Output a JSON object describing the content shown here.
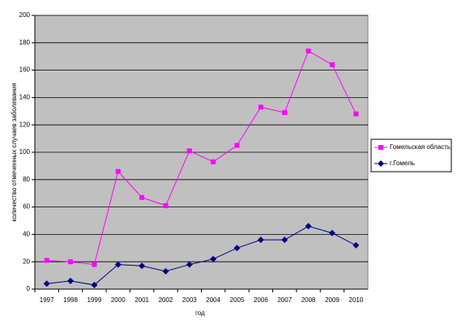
{
  "chart_data": {
    "type": "line",
    "x_label": "год",
    "y_label": "количество отмеченных случаев заболевания",
    "categories": [
      "1997",
      "1998",
      "1999",
      "2000",
      "2001",
      "2002",
      "2003",
      "2004",
      "2005",
      "2006",
      "2007",
      "2008",
      "2009",
      "2010"
    ],
    "series": [
      {
        "name": "Гомельская область",
        "color": "#ff00ff",
        "marker": "square",
        "values": [
          21,
          20,
          18,
          86,
          67,
          61,
          101,
          93,
          105,
          133,
          129,
          174,
          164,
          128
        ]
      },
      {
        "name": "г.Гомель",
        "color": "#000080",
        "marker": "diamond",
        "values": [
          4,
          6,
          3,
          18,
          17,
          13,
          18,
          22,
          30,
          36,
          36,
          46,
          41,
          32
        ]
      }
    ],
    "ylim": [
      0,
      200
    ],
    "yticks": [
      0,
      20,
      40,
      60,
      80,
      100,
      120,
      140,
      160,
      180,
      200
    ],
    "grid": true,
    "legend": "right",
    "plot_background": "#c0c0c0"
  }
}
